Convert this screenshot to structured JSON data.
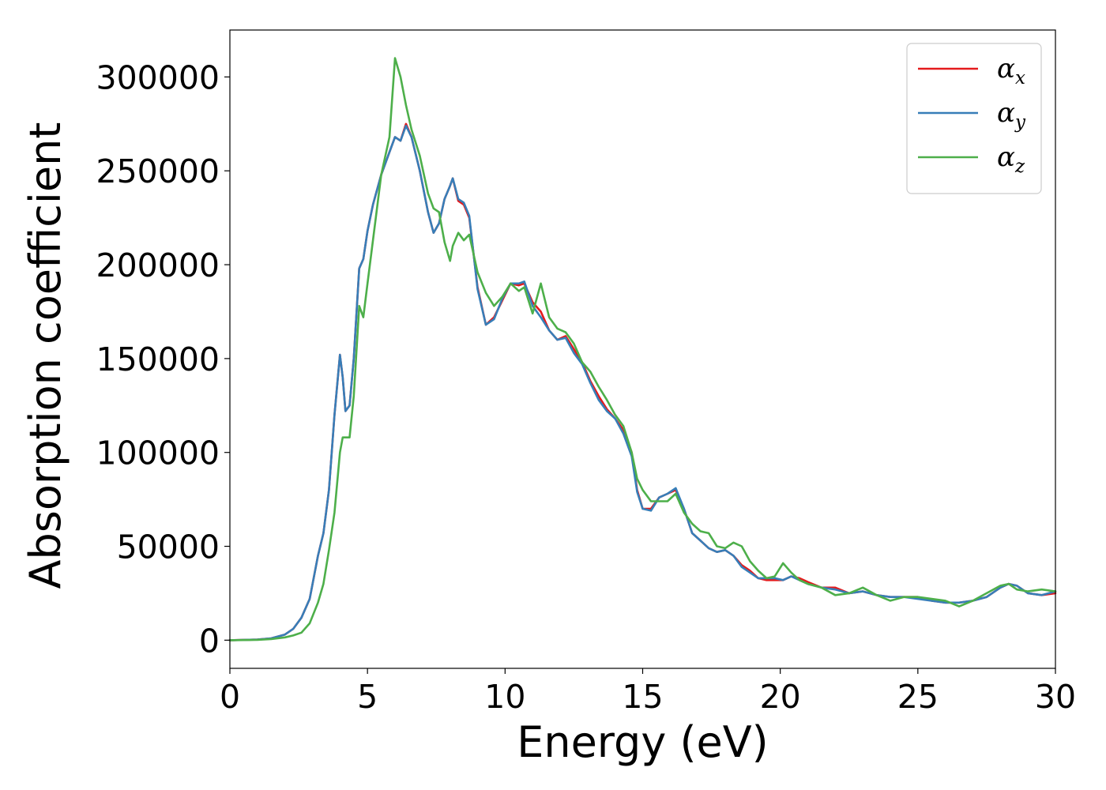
{
  "chart_data": {
    "type": "line",
    "title": "",
    "xlabel": "Energy (eV)",
    "ylabel": "Absorption coefficient",
    "xlim": [
      0,
      30
    ],
    "ylim": [
      -15000,
      325000
    ],
    "xticks": [
      "0",
      "5",
      "10",
      "15",
      "20",
      "25",
      "30"
    ],
    "yticks": [
      "0",
      "50000",
      "100000",
      "150000",
      "200000",
      "250000",
      "300000"
    ],
    "grid": false,
    "legend_position": "top-right",
    "series": [
      {
        "name": "α_x",
        "symbol": "α",
        "sub": "x",
        "color": "#e41a1c",
        "x": [
          0,
          1,
          1.5,
          2,
          2.3,
          2.6,
          2.9,
          3.2,
          3.4,
          3.6,
          3.8,
          4.0,
          4.1,
          4.2,
          4.35,
          4.5,
          4.7,
          4.85,
          5.0,
          5.2,
          5.5,
          5.8,
          6.0,
          6.2,
          6.4,
          6.6,
          6.9,
          7.2,
          7.4,
          7.6,
          7.8,
          8.0,
          8.1,
          8.3,
          8.5,
          8.7,
          9.0,
          9.3,
          9.6,
          9.9,
          10.2,
          10.5,
          10.7,
          11.0,
          11.3,
          11.6,
          11.9,
          12.2,
          12.5,
          12.8,
          13.1,
          13.4,
          13.7,
          14.0,
          14.3,
          14.6,
          14.8,
          15.0,
          15.3,
          15.6,
          15.9,
          16.2,
          16.5,
          16.8,
          17.1,
          17.4,
          17.7,
          18.0,
          18.3,
          18.6,
          18.9,
          19.2,
          19.5,
          19.8,
          20.1,
          20.4,
          20.7,
          21.0,
          21.5,
          22.0,
          22.5,
          23.0,
          23.5,
          24.0,
          24.5,
          25.0,
          25.5,
          26.0,
          26.5,
          27.0,
          27.5,
          28.0,
          28.3,
          28.6,
          29.0,
          29.5,
          30.0
        ],
        "y": [
          0,
          300,
          1000,
          3000,
          6000,
          12000,
          22000,
          45000,
          57000,
          80000,
          120000,
          152000,
          140000,
          122000,
          125000,
          150000,
          198000,
          203000,
          218000,
          232000,
          248000,
          260000,
          268000,
          266000,
          275000,
          268000,
          250000,
          228000,
          217000,
          222000,
          235000,
          242000,
          246000,
          234000,
          232000,
          225000,
          188000,
          168000,
          172000,
          181000,
          190000,
          189000,
          190000,
          180000,
          175000,
          165000,
          160000,
          162000,
          155000,
          148000,
          138000,
          130000,
          123000,
          118000,
          112000,
          100000,
          80000,
          70000,
          70000,
          76000,
          78000,
          80000,
          70000,
          57000,
          53000,
          49000,
          47000,
          48000,
          45000,
          40000,
          37000,
          33000,
          32000,
          32000,
          32000,
          34000,
          33000,
          31000,
          28000,
          28000,
          25000,
          26000,
          24000,
          23000,
          23000,
          23000,
          21000,
          20000,
          20000,
          21000,
          23000,
          28000,
          30000,
          29000,
          25000,
          24000,
          25000
        ]
      },
      {
        "name": "α_y",
        "symbol": "α",
        "sub": "y",
        "color": "#377eb8",
        "x": [
          0,
          1,
          1.5,
          2,
          2.3,
          2.6,
          2.9,
          3.2,
          3.4,
          3.6,
          3.8,
          4.0,
          4.1,
          4.2,
          4.35,
          4.5,
          4.7,
          4.85,
          5.0,
          5.2,
          5.5,
          5.8,
          6.0,
          6.2,
          6.4,
          6.6,
          6.9,
          7.2,
          7.4,
          7.6,
          7.8,
          8.0,
          8.1,
          8.3,
          8.5,
          8.7,
          9.0,
          9.3,
          9.6,
          9.9,
          10.2,
          10.5,
          10.7,
          11.0,
          11.3,
          11.6,
          11.9,
          12.2,
          12.5,
          12.8,
          13.1,
          13.4,
          13.7,
          14.0,
          14.3,
          14.6,
          14.8,
          15.0,
          15.3,
          15.6,
          15.9,
          16.2,
          16.5,
          16.8,
          17.1,
          17.4,
          17.7,
          18.0,
          18.3,
          18.6,
          18.9,
          19.2,
          19.5,
          19.8,
          20.1,
          20.4,
          20.7,
          21.0,
          21.5,
          22.0,
          22.5,
          23.0,
          23.5,
          24.0,
          24.5,
          25.0,
          25.5,
          26.0,
          26.5,
          27.0,
          27.5,
          28.0,
          28.3,
          28.6,
          29.0,
          29.5,
          30.0
        ],
        "y": [
          0,
          300,
          1000,
          3000,
          6000,
          12000,
          22000,
          45000,
          57000,
          80000,
          120000,
          152000,
          140000,
          122000,
          125000,
          150000,
          198000,
          203000,
          218000,
          232000,
          248000,
          260000,
          268000,
          266000,
          274000,
          268000,
          250000,
          228000,
          217000,
          222000,
          235000,
          242000,
          246000,
          235000,
          233000,
          226000,
          187000,
          168000,
          171000,
          182000,
          190000,
          190000,
          191000,
          178000,
          172000,
          165000,
          160000,
          161000,
          153000,
          147000,
          137000,
          128000,
          122000,
          118000,
          110000,
          98000,
          79000,
          70000,
          69000,
          76000,
          78000,
          81000,
          70000,
          57000,
          53000,
          49000,
          47000,
          48000,
          45000,
          39000,
          36000,
          33000,
          33000,
          33000,
          32000,
          34000,
          32000,
          30000,
          28000,
          27000,
          25000,
          26000,
          24000,
          23000,
          23000,
          22000,
          21000,
          20000,
          20000,
          21000,
          23000,
          28000,
          30000,
          29000,
          25000,
          24000,
          26000
        ]
      },
      {
        "name": "α_z",
        "symbol": "α",
        "sub": "z",
        "color": "#4daf4a",
        "x": [
          0,
          1,
          1.5,
          2,
          2.3,
          2.6,
          2.9,
          3.2,
          3.4,
          3.6,
          3.8,
          4.0,
          4.1,
          4.2,
          4.35,
          4.5,
          4.7,
          4.85,
          5.0,
          5.2,
          5.5,
          5.8,
          6.0,
          6.2,
          6.4,
          6.6,
          6.9,
          7.2,
          7.4,
          7.6,
          7.8,
          8.0,
          8.1,
          8.3,
          8.5,
          8.7,
          9.0,
          9.3,
          9.6,
          9.9,
          10.2,
          10.5,
          10.7,
          11.0,
          11.3,
          11.6,
          11.9,
          12.2,
          12.5,
          12.8,
          13.1,
          13.4,
          13.7,
          14.0,
          14.3,
          14.6,
          14.8,
          15.0,
          15.3,
          15.6,
          15.9,
          16.2,
          16.5,
          16.8,
          17.1,
          17.4,
          17.7,
          18.0,
          18.3,
          18.6,
          18.9,
          19.2,
          19.5,
          19.8,
          20.1,
          20.4,
          20.7,
          21.0,
          21.5,
          22.0,
          22.5,
          23.0,
          23.5,
          24.0,
          24.5,
          25.0,
          25.5,
          26.0,
          26.5,
          27.0,
          27.5,
          28.0,
          28.3,
          28.6,
          29.0,
          29.5,
          30.0
        ],
        "y": [
          0,
          200,
          600,
          1500,
          2500,
          4000,
          9000,
          20000,
          30000,
          48000,
          68000,
          100000,
          108000,
          108000,
          108000,
          130000,
          178000,
          172000,
          190000,
          213000,
          248000,
          268000,
          310000,
          300000,
          285000,
          272000,
          258000,
          238000,
          230000,
          228000,
          212000,
          202000,
          210000,
          217000,
          213000,
          216000,
          196000,
          185000,
          178000,
          183000,
          190000,
          186000,
          188000,
          174000,
          190000,
          172000,
          166000,
          164000,
          158000,
          148000,
          143000,
          135000,
          128000,
          120000,
          114000,
          100000,
          86000,
          80000,
          74000,
          74000,
          74000,
          78000,
          68000,
          62000,
          58000,
          57000,
          50000,
          49000,
          52000,
          50000,
          42000,
          37000,
          33000,
          34000,
          41000,
          36000,
          32000,
          30000,
          28000,
          24000,
          25000,
          28000,
          24000,
          21000,
          23000,
          23000,
          22000,
          21000,
          18000,
          21000,
          25000,
          29000,
          30000,
          27000,
          26000,
          27000,
          26000
        ]
      }
    ]
  }
}
